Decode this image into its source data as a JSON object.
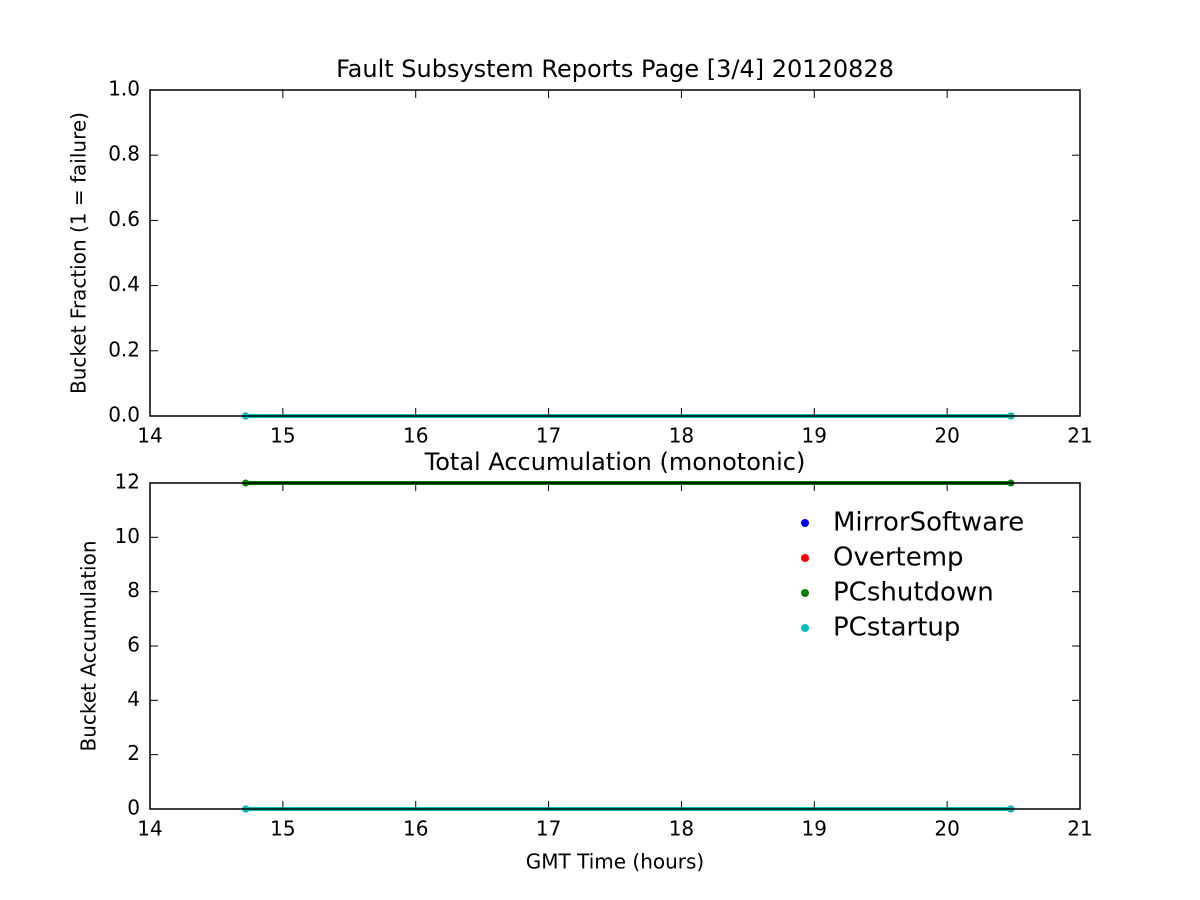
{
  "chart_data": [
    {
      "type": "line",
      "title": "Fault Subsystem Reports Page [3/4] 20120828",
      "y_label": "Bucket Fraction (1 = failure)",
      "x": [
        14.72,
        20.48
      ],
      "series": [
        {
          "color": "#0000ff",
          "values": [
            0,
            0
          ]
        },
        {
          "color": "#ff0000",
          "values": [
            0,
            0
          ]
        },
        {
          "color": "#008000",
          "values": [
            0,
            0
          ]
        },
        {
          "color": "#00bfbf",
          "values": [
            0,
            0
          ]
        }
      ],
      "xlim": [
        14,
        21
      ],
      "xticks": [
        14,
        15,
        16,
        17,
        18,
        19,
        20,
        21
      ],
      "ylim": [
        0,
        1
      ],
      "yticks": [
        {
          "value": 0,
          "label": "0.0"
        },
        0.2,
        0.4,
        0.6,
        0.8,
        {
          "value": 1,
          "label": "1.0"
        }
      ],
      "grid": false
    },
    {
      "type": "line",
      "title": "Total Accumulation (monotonic)",
      "x_label": "GMT Time (hours)",
      "y_label": "Bucket Accumulation",
      "x": [
        14.72,
        20.48
      ],
      "series": [
        {
          "name": "MirrorSoftware",
          "color": "#0000ff",
          "values": [
            0,
            0
          ]
        },
        {
          "name": "Overtemp",
          "color": "#ff0000",
          "values": [
            0,
            0
          ]
        },
        {
          "name": "PCshutdown",
          "color": "#008000",
          "values": [
            12,
            12
          ]
        },
        {
          "name": "PCstartup",
          "color": "#00bfbf",
          "values": [
            0,
            0
          ]
        }
      ],
      "xlim": [
        14,
        21
      ],
      "xticks": [
        14,
        15,
        16,
        17,
        18,
        19,
        20,
        21
      ],
      "ylim": [
        0,
        12
      ],
      "yticks": [
        0,
        2,
        4,
        6,
        8,
        10,
        12
      ],
      "grid": false,
      "legend": "upper right"
    }
  ]
}
